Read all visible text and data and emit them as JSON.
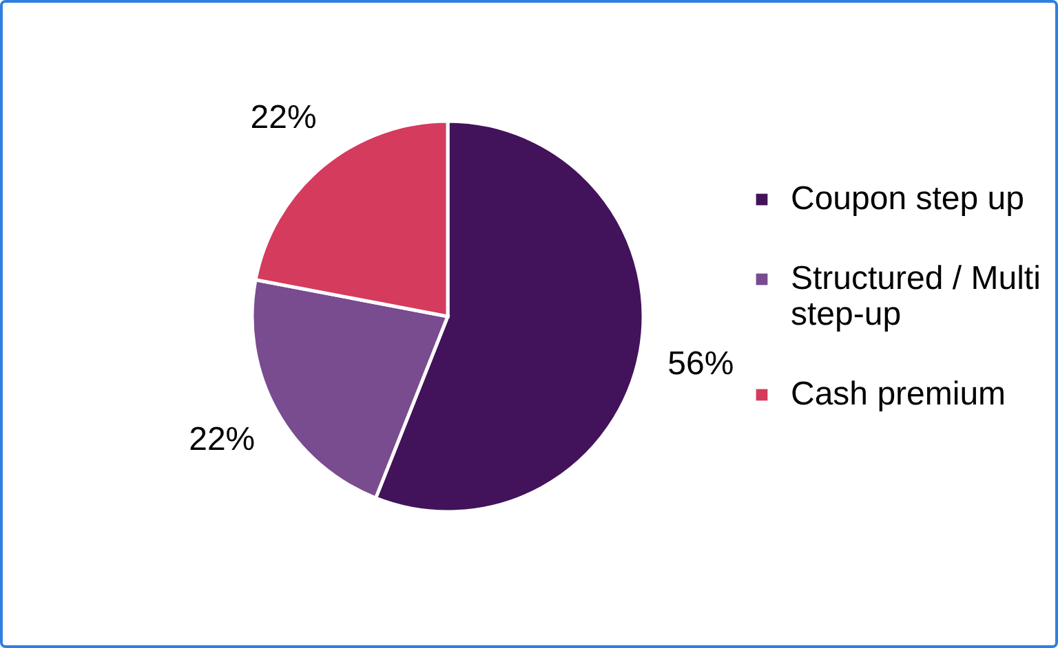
{
  "chart_data": {
    "type": "pie",
    "categories": [
      "Coupon step up",
      "Structured / Multi step-up",
      "Cash premium"
    ],
    "values": [
      56,
      22,
      22
    ],
    "colors": [
      "#42135a",
      "#794b8f",
      "#d43b5c"
    ],
    "value_labels": [
      "56%",
      "22%",
      "22%"
    ],
    "legend": "right"
  }
}
